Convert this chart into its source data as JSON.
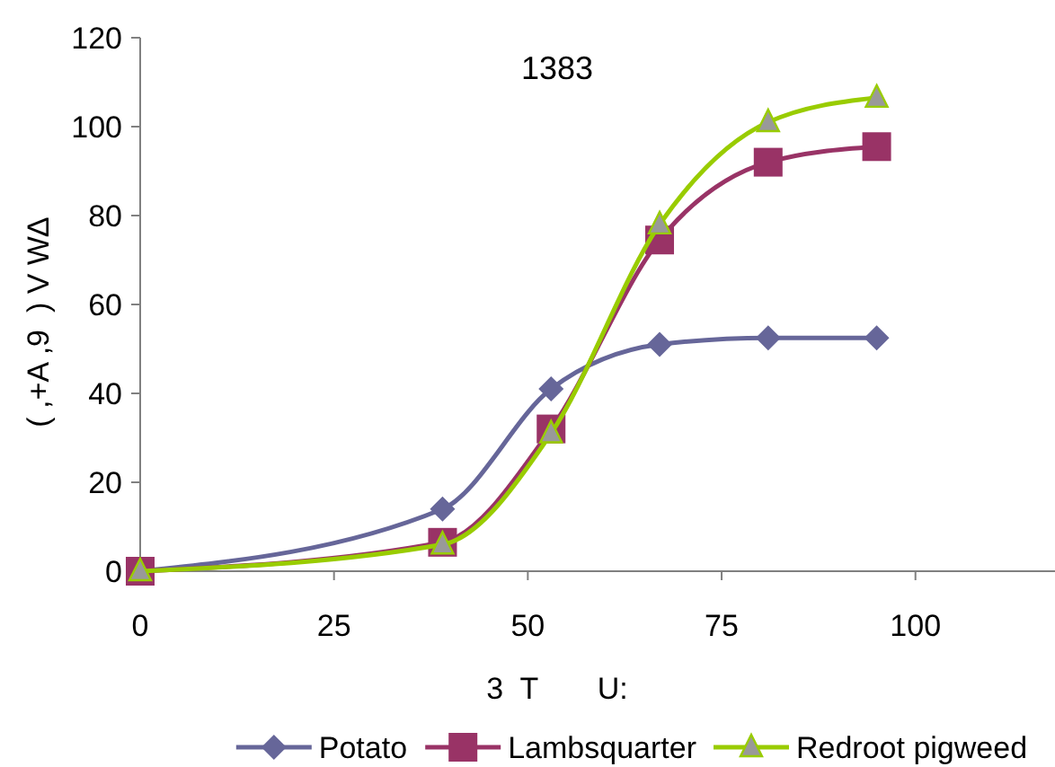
{
  "chart_data": {
    "type": "line",
    "title": "1383",
    "xlabel": "3  T       U:",
    "ylabel": "( ,+A ,9  ) V W∆",
    "x": [
      0,
      39,
      53,
      67,
      81,
      95
    ],
    "series": [
      {
        "name": "Potato",
        "color": "#666699",
        "marker": "diamond",
        "values": [
          0,
          14,
          41,
          51,
          52.5,
          52.5
        ]
      },
      {
        "name": "Lambsquarter",
        "color": "#993366",
        "marker": "square",
        "values": [
          0,
          6.5,
          32,
          74.5,
          92,
          95.5
        ]
      },
      {
        "name": "Redroot pigweed",
        "color": "#99cc00",
        "marker": "triangle",
        "values": [
          0,
          6,
          31,
          78,
          101,
          106.5
        ]
      }
    ],
    "xlim": [
      0,
      118
    ],
    "xticks": [
      0,
      25,
      50,
      75,
      100
    ],
    "ylim": [
      0,
      120
    ],
    "yticks": [
      0,
      20,
      40,
      60,
      80,
      100,
      120
    ],
    "grid": false,
    "legend": "bottom"
  }
}
